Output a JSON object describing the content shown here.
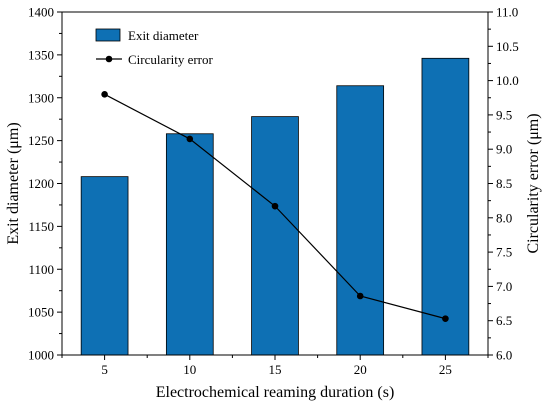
{
  "chart_data": {
    "type": "bar",
    "title": "",
    "xlabel": "Electrochemical reaming duration (s)",
    "ylabel": "Exit diameter (μm)",
    "y2label": "Circularity error (μm)",
    "categories": [
      "5",
      "10",
      "15",
      "20",
      "25"
    ],
    "ylim": [
      1000,
      1400
    ],
    "yticks": [
      "1000",
      "1050",
      "1100",
      "1150",
      "1200",
      "1250",
      "1300",
      "1350",
      "1400"
    ],
    "y2lim": [
      6.0,
      11.0
    ],
    "y2ticks": [
      "6.0",
      "6.5",
      "7.0",
      "7.5",
      "8.0",
      "8.5",
      "9.0",
      "9.5",
      "10.0",
      "10.5",
      "11.0"
    ],
    "series": [
      {
        "name": "Exit diameter",
        "type": "bar",
        "axis": "left",
        "color": "#0e70b4",
        "values": [
          1208,
          1258,
          1278,
          1314,
          1346
        ]
      },
      {
        "name": "Circularity error",
        "type": "line",
        "axis": "right",
        "color": "#000000",
        "values": [
          9.8,
          9.15,
          8.17,
          6.86,
          6.53
        ]
      }
    ],
    "legend": {
      "position": "top-left"
    },
    "grid": false
  }
}
